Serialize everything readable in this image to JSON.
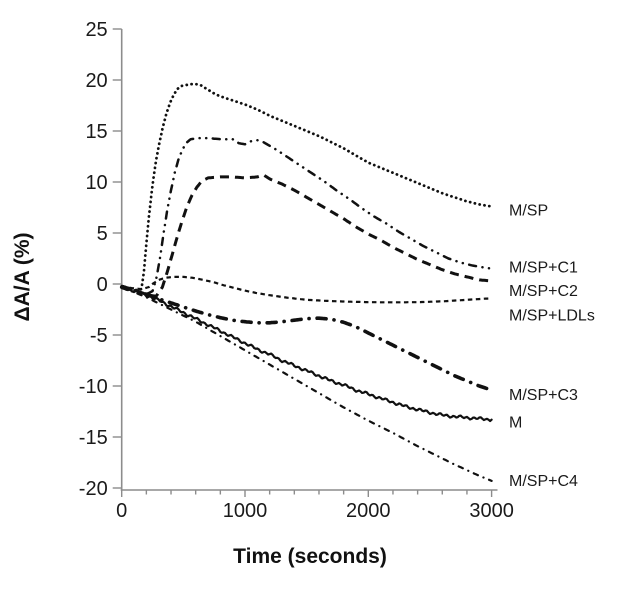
{
  "chart_data": {
    "type": "line",
    "title": "",
    "xlabel": "Time (seconds)",
    "ylabel": "ΔA/A (%)",
    "xlim": [
      0,
      3000
    ],
    "ylim": [
      -20,
      25
    ],
    "x_major_ticks": [
      0,
      1000,
      2000,
      3000
    ],
    "x_minor_tick_step": 200,
    "y_major_ticks": [
      -20,
      -15,
      -10,
      -5,
      0,
      5,
      10,
      15,
      20,
      25
    ],
    "grid": false,
    "legend_position": "labels-at-curve-ends-right",
    "line_color": "#111111",
    "axis_color": "#8c8c8c",
    "series": [
      {
        "name": "M/SP",
        "style": "dotted",
        "noisy": false,
        "label_v": 7.3,
        "points": [
          [
            0,
            -0.3
          ],
          [
            60,
            -0.5
          ],
          [
            120,
            -0.6
          ],
          [
            160,
            -0.5
          ],
          [
            180,
            1.2
          ],
          [
            200,
            4
          ],
          [
            220,
            6.5
          ],
          [
            240,
            8.7
          ],
          [
            260,
            10.6
          ],
          [
            280,
            12.2
          ],
          [
            300,
            13.5
          ],
          [
            330,
            15.2
          ],
          [
            360,
            16.6
          ],
          [
            390,
            17.7
          ],
          [
            420,
            18.5
          ],
          [
            450,
            19.1
          ],
          [
            480,
            19.4
          ],
          [
            520,
            19.5
          ],
          [
            560,
            19.6
          ],
          [
            600,
            19.6
          ],
          [
            640,
            19.5
          ],
          [
            680,
            19.2
          ],
          [
            720,
            18.9
          ],
          [
            760,
            18.6
          ],
          [
            800,
            18.4
          ],
          [
            900,
            18.0
          ],
          [
            1000,
            17.6
          ],
          [
            1100,
            17.1
          ],
          [
            1200,
            16.5
          ],
          [
            1300,
            16.0
          ],
          [
            1400,
            15.5
          ],
          [
            1500,
            15.0
          ],
          [
            1600,
            14.5
          ],
          [
            1700,
            13.9
          ],
          [
            1800,
            13.3
          ],
          [
            1900,
            12.6
          ],
          [
            2000,
            11.9
          ],
          [
            2100,
            11.4
          ],
          [
            2200,
            10.9
          ],
          [
            2300,
            10.4
          ],
          [
            2400,
            9.9
          ],
          [
            2500,
            9.4
          ],
          [
            2600,
            8.9
          ],
          [
            2700,
            8.5
          ],
          [
            2800,
            8.1
          ],
          [
            2900,
            7.8
          ],
          [
            3000,
            7.6
          ]
        ]
      },
      {
        "name": "M/SP+C1",
        "style": "dashdotdot",
        "noisy": false,
        "label_v": 1.7,
        "points": [
          [
            0,
            -0.2
          ],
          [
            80,
            -0.5
          ],
          [
            140,
            -0.8
          ],
          [
            200,
            -1.0
          ],
          [
            250,
            -0.7
          ],
          [
            280,
            0.5
          ],
          [
            310,
            2.5
          ],
          [
            340,
            5.0
          ],
          [
            370,
            7.3
          ],
          [
            400,
            9.2
          ],
          [
            430,
            10.9
          ],
          [
            460,
            12.2
          ],
          [
            490,
            13.1
          ],
          [
            520,
            13.8
          ],
          [
            560,
            14.2
          ],
          [
            620,
            14.3
          ],
          [
            700,
            14.3
          ],
          [
            800,
            14.2
          ],
          [
            900,
            14.2
          ],
          [
            950,
            13.8
          ],
          [
            1000,
            13.7
          ],
          [
            1050,
            14.0
          ],
          [
            1100,
            14.1
          ],
          [
            1150,
            13.9
          ],
          [
            1250,
            13.2
          ],
          [
            1350,
            12.4
          ],
          [
            1450,
            11.6
          ],
          [
            1550,
            10.8
          ],
          [
            1650,
            10.0
          ],
          [
            1750,
            9.1
          ],
          [
            1850,
            8.3
          ],
          [
            1950,
            7.4
          ],
          [
            2050,
            6.6
          ],
          [
            2150,
            5.9
          ],
          [
            2250,
            5.1
          ],
          [
            2350,
            4.4
          ],
          [
            2450,
            3.7
          ],
          [
            2550,
            3.1
          ],
          [
            2650,
            2.5
          ],
          [
            2750,
            2.1
          ],
          [
            2850,
            1.8
          ],
          [
            2950,
            1.6
          ],
          [
            3000,
            1.5
          ]
        ]
      },
      {
        "name": "M/SP+C2",
        "style": "dashed",
        "noisy": false,
        "label_v": -0.6,
        "points": [
          [
            0,
            -0.2
          ],
          [
            80,
            -0.5
          ],
          [
            150,
            -0.8
          ],
          [
            220,
            -1.1
          ],
          [
            280,
            -1.2
          ],
          [
            330,
            -0.3
          ],
          [
            370,
            1.2
          ],
          [
            410,
            2.9
          ],
          [
            450,
            4.6
          ],
          [
            490,
            6.2
          ],
          [
            530,
            7.6
          ],
          [
            570,
            8.7
          ],
          [
            610,
            9.5
          ],
          [
            650,
            10.1
          ],
          [
            700,
            10.4
          ],
          [
            800,
            10.5
          ],
          [
            900,
            10.5
          ],
          [
            1000,
            10.4
          ],
          [
            1100,
            10.5
          ],
          [
            1150,
            10.7
          ],
          [
            1200,
            10.3
          ],
          [
            1300,
            9.8
          ],
          [
            1400,
            9.2
          ],
          [
            1500,
            8.5
          ],
          [
            1600,
            7.8
          ],
          [
            1700,
            7.1
          ],
          [
            1800,
            6.4
          ],
          [
            1900,
            5.6
          ],
          [
            2000,
            4.9
          ],
          [
            2100,
            4.3
          ],
          [
            2200,
            3.6
          ],
          [
            2300,
            3.0
          ],
          [
            2400,
            2.4
          ],
          [
            2500,
            1.9
          ],
          [
            2600,
            1.4
          ],
          [
            2700,
            1.0
          ],
          [
            2800,
            0.7
          ],
          [
            2900,
            0.4
          ],
          [
            3000,
            0.3
          ]
        ]
      },
      {
        "name": "M/SP+LDLs",
        "style": "shortdash",
        "noisy": false,
        "label_v": -3.0,
        "points": [
          [
            0,
            -0.2
          ],
          [
            80,
            -0.4
          ],
          [
            160,
            -0.5
          ],
          [
            220,
            -0.3
          ],
          [
            260,
            0.1
          ],
          [
            300,
            0.4
          ],
          [
            350,
            0.6
          ],
          [
            420,
            0.7
          ],
          [
            500,
            0.7
          ],
          [
            580,
            0.6
          ],
          [
            660,
            0.4
          ],
          [
            740,
            0.2
          ],
          [
            820,
            -0.1
          ],
          [
            900,
            -0.35
          ],
          [
            1000,
            -0.65
          ],
          [
            1100,
            -0.9
          ],
          [
            1200,
            -1.1
          ],
          [
            1350,
            -1.35
          ],
          [
            1500,
            -1.55
          ],
          [
            1650,
            -1.65
          ],
          [
            1800,
            -1.72
          ],
          [
            2000,
            -1.78
          ],
          [
            2200,
            -1.8
          ],
          [
            2400,
            -1.78
          ],
          [
            2600,
            -1.7
          ],
          [
            2800,
            -1.55
          ],
          [
            3000,
            -1.4
          ]
        ]
      },
      {
        "name": "M/SP+C3",
        "style": "thickdashdot",
        "noisy": false,
        "label_v": -10.8,
        "points": [
          [
            0,
            -0.3
          ],
          [
            100,
            -0.6
          ],
          [
            200,
            -1.0
          ],
          [
            300,
            -1.45
          ],
          [
            400,
            -1.85
          ],
          [
            500,
            -2.25
          ],
          [
            600,
            -2.65
          ],
          [
            700,
            -3.0
          ],
          [
            800,
            -3.3
          ],
          [
            900,
            -3.55
          ],
          [
            1000,
            -3.7
          ],
          [
            1100,
            -3.8
          ],
          [
            1200,
            -3.8
          ],
          [
            1300,
            -3.7
          ],
          [
            1400,
            -3.55
          ],
          [
            1500,
            -3.4
          ],
          [
            1600,
            -3.35
          ],
          [
            1700,
            -3.45
          ],
          [
            1800,
            -3.75
          ],
          [
            1900,
            -4.2
          ],
          [
            2000,
            -4.8
          ],
          [
            2100,
            -5.4
          ],
          [
            2200,
            -6.0
          ],
          [
            2300,
            -6.6
          ],
          [
            2400,
            -7.2
          ],
          [
            2500,
            -7.8
          ],
          [
            2600,
            -8.4
          ],
          [
            2700,
            -9.0
          ],
          [
            2800,
            -9.5
          ],
          [
            2900,
            -10.0
          ],
          [
            3000,
            -10.4
          ]
        ]
      },
      {
        "name": "M",
        "style": "solid",
        "noisy": true,
        "label_v": -13.5,
        "points": [
          [
            0,
            -0.3
          ],
          [
            100,
            -0.7
          ],
          [
            200,
            -1.1
          ],
          [
            300,
            -1.6
          ],
          [
            400,
            -2.2
          ],
          [
            500,
            -2.8
          ],
          [
            600,
            -3.4
          ],
          [
            700,
            -4.0
          ],
          [
            800,
            -4.6
          ],
          [
            900,
            -5.2
          ],
          [
            1000,
            -5.8
          ],
          [
            1100,
            -6.4
          ],
          [
            1200,
            -6.9
          ],
          [
            1300,
            -7.5
          ],
          [
            1400,
            -8.0
          ],
          [
            1500,
            -8.5
          ],
          [
            1600,
            -9.0
          ],
          [
            1700,
            -9.5
          ],
          [
            1800,
            -9.9
          ],
          [
            1900,
            -10.4
          ],
          [
            2000,
            -10.8
          ],
          [
            2100,
            -11.2
          ],
          [
            2200,
            -11.6
          ],
          [
            2300,
            -12.0
          ],
          [
            2400,
            -12.3
          ],
          [
            2500,
            -12.6
          ],
          [
            2600,
            -12.85
          ],
          [
            2700,
            -13.0
          ],
          [
            2800,
            -13.1
          ],
          [
            2900,
            -13.2
          ],
          [
            3000,
            -13.3
          ]
        ]
      },
      {
        "name": "M/SP+C4",
        "style": "dashdot",
        "noisy": false,
        "label_v": -19.2,
        "points": [
          [
            0,
            -0.4
          ],
          [
            100,
            -0.8
          ],
          [
            200,
            -1.3
          ],
          [
            300,
            -1.9
          ],
          [
            400,
            -2.5
          ],
          [
            500,
            -3.1
          ],
          [
            600,
            -3.7
          ],
          [
            700,
            -4.4
          ],
          [
            800,
            -5.1
          ],
          [
            900,
            -5.8
          ],
          [
            1000,
            -6.5
          ],
          [
            1100,
            -7.2
          ],
          [
            1200,
            -7.9
          ],
          [
            1300,
            -8.6
          ],
          [
            1400,
            -9.3
          ],
          [
            1500,
            -10.0
          ],
          [
            1600,
            -10.7
          ],
          [
            1700,
            -11.4
          ],
          [
            1800,
            -12.1
          ],
          [
            1900,
            -12.75
          ],
          [
            2000,
            -13.4
          ],
          [
            2100,
            -14.0
          ],
          [
            2200,
            -14.6
          ],
          [
            2300,
            -15.25
          ],
          [
            2400,
            -15.9
          ],
          [
            2500,
            -16.5
          ],
          [
            2600,
            -17.1
          ],
          [
            2700,
            -17.7
          ],
          [
            2800,
            -18.25
          ],
          [
            2900,
            -18.8
          ],
          [
            3000,
            -19.3
          ]
        ]
      }
    ]
  }
}
